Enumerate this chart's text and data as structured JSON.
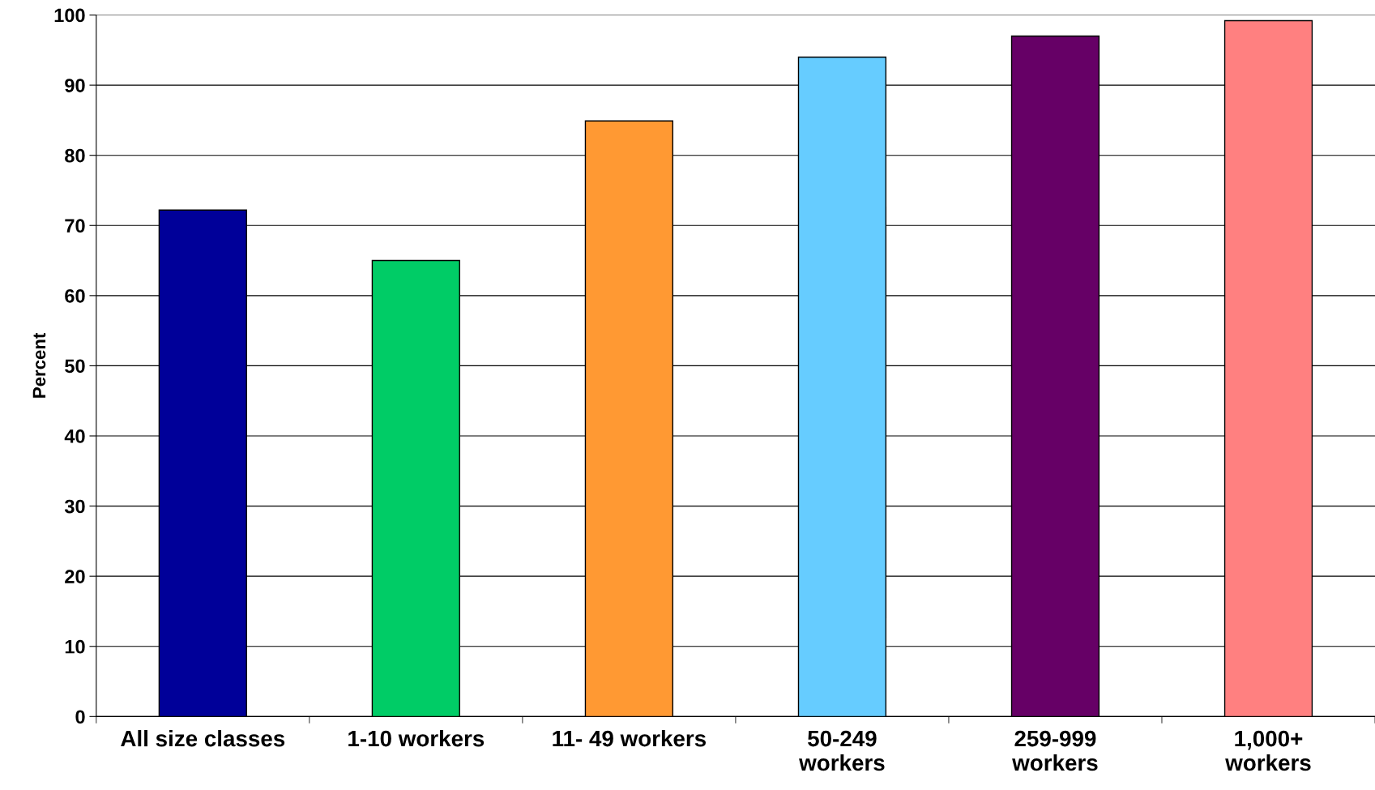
{
  "chart_data": {
    "type": "bar",
    "ylabel": "Percent",
    "categories": [
      "All size classes",
      "1-10 workers",
      "11- 49 workers",
      "50-249\nworkers",
      "259-999\nworkers",
      "1,000+\nworkers"
    ],
    "values": [
      72.2,
      65,
      84.9,
      94,
      97,
      99.2
    ],
    "colors": [
      "#000099",
      "#00cc66",
      "#ff9933",
      "#66ccff",
      "#660066",
      "#ff8080"
    ],
    "ylim": [
      0,
      100
    ],
    "yticks": [
      0,
      10,
      20,
      30,
      40,
      50,
      60,
      70,
      80,
      90,
      100
    ],
    "grid": "y",
    "legend": false
  }
}
